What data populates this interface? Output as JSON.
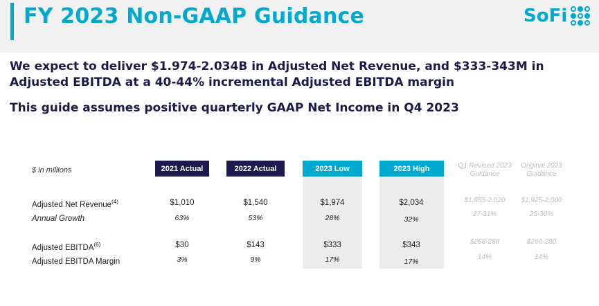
{
  "header": {
    "title": "FY 2023 Non-GAAP Guidance",
    "logo_text": "SoFi",
    "accent_color": "#00a9ce"
  },
  "headline": "We expect to deliver $1.974-2.034B in Adjusted Net Revenue, and $333-343M in Adjusted EBITDA at a 40-44% incremental Adjusted EBITDA margin",
  "subheadline": "This guide assumes positive quarterly GAAP Net Income in Q4 2023",
  "table": {
    "units_label": "$ in millions",
    "columns": [
      "2021 Actual",
      "2022 Actual",
      "2023 Low",
      "2023 High",
      "Q1 Revised 2023 Guidance",
      "Original 2023 Guidance"
    ],
    "rows": [
      {
        "label": "Adjusted Net Revenue",
        "note": "(4)",
        "values": [
          "$1,010",
          "$1,540",
          "$1,974",
          "$2,034",
          "$1,955-2,020",
          "$1,925-2,000"
        ]
      },
      {
        "label": "Annual Growth",
        "note": "",
        "values": [
          "63%",
          "53%",
          "28%",
          "32%",
          "27-31%",
          "25-30%"
        ]
      },
      {
        "label": "Adjusted EBITDA",
        "note": "(6)",
        "values": [
          "$30",
          "$143",
          "$333",
          "$343",
          "$268-288",
          "$260-280"
        ]
      },
      {
        "label": "Adjusted EBITDA Margin",
        "note": "",
        "values": [
          "3%",
          "9%",
          "17%",
          "17%",
          "14%",
          "14%"
        ]
      }
    ]
  }
}
